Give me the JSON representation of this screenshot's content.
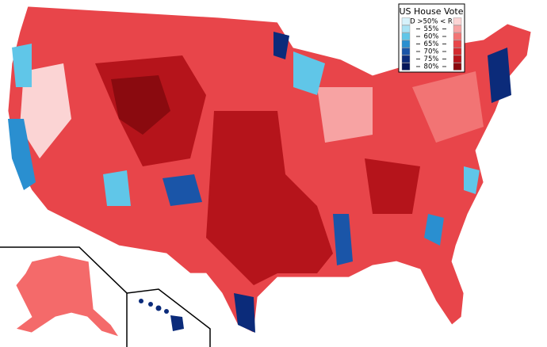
{
  "legend": {
    "title": "US House Vote",
    "header": "D >50% < R",
    "thresholds": [
      "55%",
      "60%",
      "65%",
      "70%",
      "75%",
      "80%"
    ],
    "d_colors": [
      "#d6f2fb",
      "#a8e3f5",
      "#60c6e8",
      "#2a8fd0",
      "#1a55a8",
      "#0b2b7a",
      "#06175a"
    ],
    "r_colors": [
      "#fbd4d4",
      "#f7a3a3",
      "#f27474",
      "#e8454a",
      "#d42a2f",
      "#b5141b",
      "#8a0a0f"
    ]
  }
}
